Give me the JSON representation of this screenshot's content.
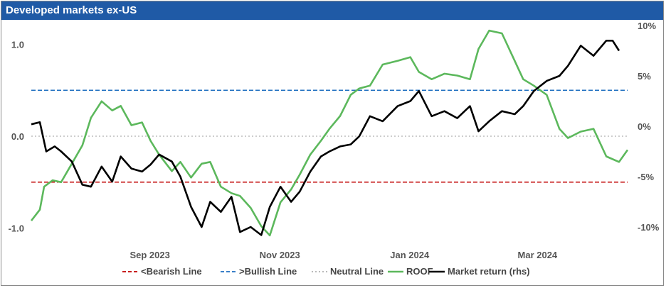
{
  "chart_data": {
    "type": "line",
    "title": "Developed markets ex-US",
    "x_ticks": [
      "Sep 2023",
      "Nov 2023",
      "Jan 2024",
      "Mar 2024"
    ],
    "left_axis": {
      "ticks": [
        "1.0",
        "0.0",
        "-1.0"
      ],
      "ylim": [
        -1.25,
        1.15
      ]
    },
    "right_axis": {
      "ticks": [
        "10%",
        "5%",
        "0%",
        "-5%",
        "-10%"
      ],
      "ylim": [
        "-11%",
        "10.5%"
      ]
    },
    "reference_lines": [
      {
        "name": "<Bearish Line",
        "value": -0.5,
        "color": "#c00000",
        "style": "dashed"
      },
      {
        "name": ">Bullish Line",
        "value": 0.5,
        "color": "#1f6fc0",
        "style": "dashed"
      },
      {
        "name": "Neutral Line",
        "value": 0.0,
        "color": "#b0b0b0",
        "style": "dotted"
      }
    ],
    "series": [
      {
        "name": "ROOF",
        "axis": "left",
        "color": "#5cb85c",
        "x": [
          "2023-07-14",
          "2023-07-18",
          "2023-07-20",
          "2023-07-24",
          "2023-07-28",
          "2023-08-02",
          "2023-08-07",
          "2023-08-11",
          "2023-08-16",
          "2023-08-21",
          "2023-08-25",
          "2023-08-30",
          "2023-09-04",
          "2023-09-08",
          "2023-09-12",
          "2023-09-18",
          "2023-09-22",
          "2023-09-27",
          "2023-10-02",
          "2023-10-06",
          "2023-10-11",
          "2023-10-16",
          "2023-10-20",
          "2023-10-25",
          "2023-10-30",
          "2023-11-03",
          "2023-11-08",
          "2023-11-13",
          "2023-11-17",
          "2023-11-22",
          "2023-11-27",
          "2023-12-01",
          "2023-12-06",
          "2023-12-11",
          "2023-12-15",
          "2023-12-20",
          "2023-12-26",
          "2024-01-02",
          "2024-01-08",
          "2024-01-12",
          "2024-01-18",
          "2024-01-24",
          "2024-01-30",
          "2024-02-05",
          "2024-02-09",
          "2024-02-14",
          "2024-02-20",
          "2024-02-26",
          "2024-03-01",
          "2024-03-06",
          "2024-03-12",
          "2024-03-18",
          "2024-03-22",
          "2024-03-28",
          "2024-04-03",
          "2024-04-09",
          "2024-04-15",
          "2024-04-19"
        ],
        "values": [
          -0.92,
          -0.8,
          -0.55,
          -0.48,
          -0.5,
          -0.3,
          -0.1,
          0.2,
          0.38,
          0.28,
          0.33,
          0.12,
          0.15,
          -0.05,
          -0.2,
          -0.38,
          -0.28,
          -0.45,
          -0.3,
          -0.28,
          -0.55,
          -0.62,
          -0.65,
          -0.78,
          -0.98,
          -1.08,
          -0.72,
          -0.58,
          -0.42,
          -0.2,
          -0.05,
          0.08,
          0.22,
          0.45,
          0.52,
          0.55,
          0.78,
          0.82,
          0.86,
          0.7,
          0.62,
          0.68,
          0.66,
          0.62,
          0.95,
          1.15,
          1.12,
          0.82,
          0.62,
          0.55,
          0.45,
          0.08,
          -0.02,
          0.05,
          0.08,
          -0.22,
          -0.28,
          -0.15
        ]
      },
      {
        "name": "Market return (rhs)",
        "axis": "right",
        "color": "#000000",
        "x": [
          "2023-07-14",
          "2023-07-18",
          "2023-07-21",
          "2023-07-25",
          "2023-07-28",
          "2023-08-02",
          "2023-08-07",
          "2023-08-11",
          "2023-08-16",
          "2023-08-21",
          "2023-08-25",
          "2023-08-30",
          "2023-09-04",
          "2023-09-08",
          "2023-09-12",
          "2023-09-18",
          "2023-09-22",
          "2023-09-27",
          "2023-10-02",
          "2023-10-06",
          "2023-10-11",
          "2023-10-16",
          "2023-10-20",
          "2023-10-25",
          "2023-10-30",
          "2023-11-03",
          "2023-11-08",
          "2023-11-13",
          "2023-11-17",
          "2023-11-22",
          "2023-11-27",
          "2023-12-01",
          "2023-12-06",
          "2023-12-11",
          "2023-12-15",
          "2023-12-20",
          "2023-12-26",
          "2024-01-02",
          "2024-01-08",
          "2024-01-12",
          "2024-01-18",
          "2024-01-24",
          "2024-01-30",
          "2024-02-05",
          "2024-02-09",
          "2024-02-14",
          "2024-02-20",
          "2024-02-26",
          "2024-03-01",
          "2024-03-06",
          "2024-03-12",
          "2024-03-18",
          "2024-03-22",
          "2024-03-28",
          "2024-04-03",
          "2024-04-09",
          "2024-04-12",
          "2024-04-15"
        ],
        "values": [
          0.2,
          0.4,
          -2.5,
          -2.0,
          -2.5,
          -3.5,
          -5.8,
          -6.0,
          -4.0,
          -5.5,
          -3.0,
          -4.2,
          -4.5,
          -3.8,
          -2.8,
          -3.5,
          -5.0,
          -8.0,
          -10.0,
          -7.5,
          -8.5,
          -7.0,
          -10.5,
          -10.0,
          -10.8,
          -8.0,
          -6.0,
          -7.5,
          -6.5,
          -4.5,
          -3.0,
          -2.5,
          -2.0,
          -1.8,
          -1.0,
          1.0,
          0.5,
          2.0,
          2.5,
          3.5,
          1.0,
          1.5,
          0.8,
          2.0,
          -0.5,
          0.5,
          1.5,
          1.2,
          2.0,
          3.5,
          4.5,
          5.0,
          6.0,
          8.0,
          7.0,
          8.5,
          8.5,
          7.5
        ]
      }
    ],
    "legend": {
      "position": "bottom",
      "entries": [
        "<Bearish Line",
        ">Bullish Line",
        "Neutral Line",
        "ROOF",
        "Market return (rhs)"
      ]
    },
    "grid": false
  }
}
